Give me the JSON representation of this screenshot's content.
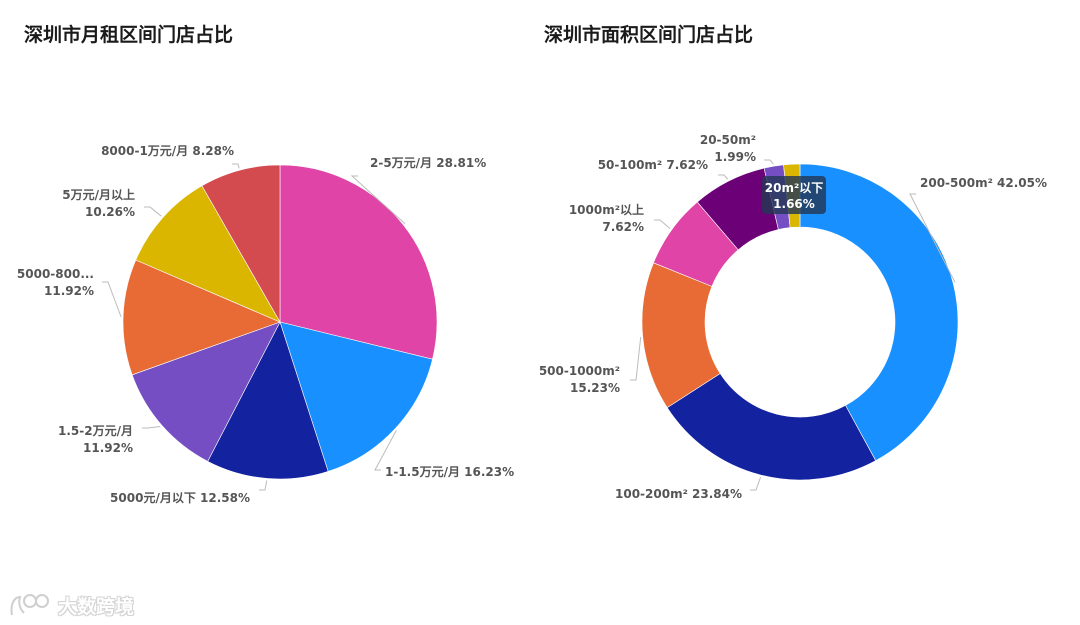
{
  "chart_data": [
    {
      "type": "pie",
      "title": "深圳市月租区间门店占比",
      "series": [
        {
          "name": "2-5万元/月",
          "value": 28.81,
          "label": "28.81%",
          "color": "#E044A7"
        },
        {
          "name": "1-1.5万元/月",
          "value": 16.23,
          "label": "16.23%",
          "color": "#1890FF"
        },
        {
          "name": "5000元/月以下",
          "value": 12.58,
          "label": "12.58%",
          "color": "#13229E"
        },
        {
          "name": "1.5-2万元/月",
          "value": 11.92,
          "label": "11.92%",
          "color": "#744EC2"
        },
        {
          "name": "5000-800...",
          "value": 11.92,
          "label": "11.92%",
          "color": "#E86B35"
        },
        {
          "name": "5万元/月以上",
          "value": 10.26,
          "label": "10.26%",
          "color": "#DAB600"
        },
        {
          "name": "8000-1万元/月",
          "value": 8.28,
          "label": "8.28%",
          "color": "#D34A4F"
        }
      ]
    },
    {
      "type": "pie",
      "subtype": "donut",
      "title": "深圳市面积区间门店占比",
      "series": [
        {
          "name": "200-500m²",
          "value": 42.05,
          "label": "42.05%",
          "color": "#1890FF"
        },
        {
          "name": "100-200m²",
          "value": 23.84,
          "label": "23.84%",
          "color": "#13229E"
        },
        {
          "name": "500-1000m²",
          "value": 15.23,
          "label": "15.23%",
          "color": "#E86B35"
        },
        {
          "name": "1000m²以上",
          "value": 7.62,
          "label": "7.62%",
          "color": "#E044A7"
        },
        {
          "name": "50-100m²",
          "value": 7.62,
          "label": "7.62%",
          "color": "#6C0077"
        },
        {
          "name": "20-50m²",
          "value": 1.99,
          "label": "1.99%",
          "color": "#744EC2"
        },
        {
          "name": "20m²以下",
          "value": 1.66,
          "label": "1.66%",
          "color": "#DAB600"
        }
      ],
      "tooltip": {
        "name": "20m²以下",
        "value": "1.66%"
      }
    }
  ],
  "watermark": {
    "text": "大数跨境",
    "logo": "brand-logo-icon"
  }
}
